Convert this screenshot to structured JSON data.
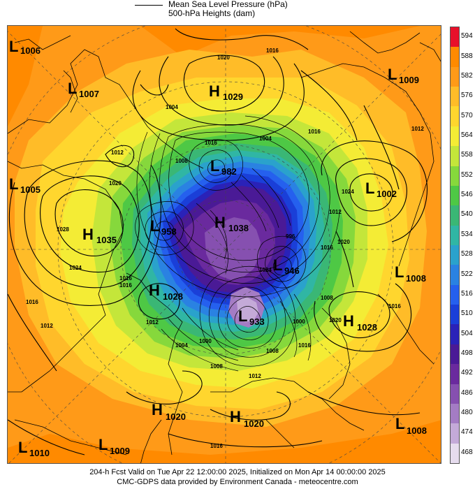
{
  "header": {
    "legend_mslp": "Mean Sea Level Pressure (hPa)",
    "legend_heights": "500-hPa Heights (dam)"
  },
  "footer": {
    "line1": "204-h Fcst Valid on Tue Apr 22 12:00:00 2025, Initialized on Mon Apr 14 00:00:00 2025",
    "line2": "CMC-GDPS data provided by Environment Canada - meteocentre.com"
  },
  "colorbar": {
    "levels": [
      "594",
      "588",
      "582",
      "576",
      "570",
      "564",
      "558",
      "552",
      "546",
      "540",
      "534",
      "528",
      "522",
      "516",
      "510",
      "504",
      "498",
      "492",
      "486",
      "480",
      "474",
      "468"
    ],
    "colors": [
      "#e8102a",
      "#ff8a00",
      "#ff9a18",
      "#ffbc28",
      "#ffd62e",
      "#f4ec35",
      "#c4e63a",
      "#86d83c",
      "#4ec845",
      "#3ab775",
      "#30b6a4",
      "#2aa2cc",
      "#2a82e2",
      "#2560ee",
      "#1a3fd8",
      "#2a22b8",
      "#4a1a96",
      "#6a2a9e",
      "#8650b0",
      "#a47cc4",
      "#c4aad8",
      "#e6dcee"
    ]
  },
  "pressure_systems": [
    {
      "type": "L",
      "value": "1006"
    },
    {
      "type": "L",
      "value": "1007"
    },
    {
      "type": "H",
      "value": "1029"
    },
    {
      "type": "L",
      "value": "1009"
    },
    {
      "type": "L",
      "value": "1005"
    },
    {
      "type": "L",
      "value": "982"
    },
    {
      "type": "L",
      "value": "1002"
    },
    {
      "type": "H",
      "value": "1035"
    },
    {
      "type": "L",
      "value": "958"
    },
    {
      "type": "H",
      "value": "1038"
    },
    {
      "type": "L",
      "value": "946"
    },
    {
      "type": "L",
      "value": "1008"
    },
    {
      "type": "H",
      "value": "1028"
    },
    {
      "type": "L",
      "value": "933"
    },
    {
      "type": "H",
      "value": "1028"
    },
    {
      "type": "H",
      "value": "1020"
    },
    {
      "type": "H",
      "value": "1020"
    },
    {
      "type": "L",
      "value": "1008"
    },
    {
      "type": "L",
      "value": "1010"
    },
    {
      "type": "L",
      "value": "1009"
    }
  ],
  "isobar_labels": [
    "1016",
    "1020",
    "1004",
    "1016",
    "1012",
    "1008",
    "1004",
    "1016",
    "1024",
    "1012",
    "1020",
    "1028",
    "1024",
    "1016",
    "1012",
    "1016",
    "1020",
    "1000",
    "996",
    "1008",
    "1012",
    "1016",
    "1020",
    "1024",
    "1016",
    "1012",
    "1016",
    "1008",
    "1004",
    "1000",
    "1012",
    "1008",
    "1016",
    "1016"
  ]
}
